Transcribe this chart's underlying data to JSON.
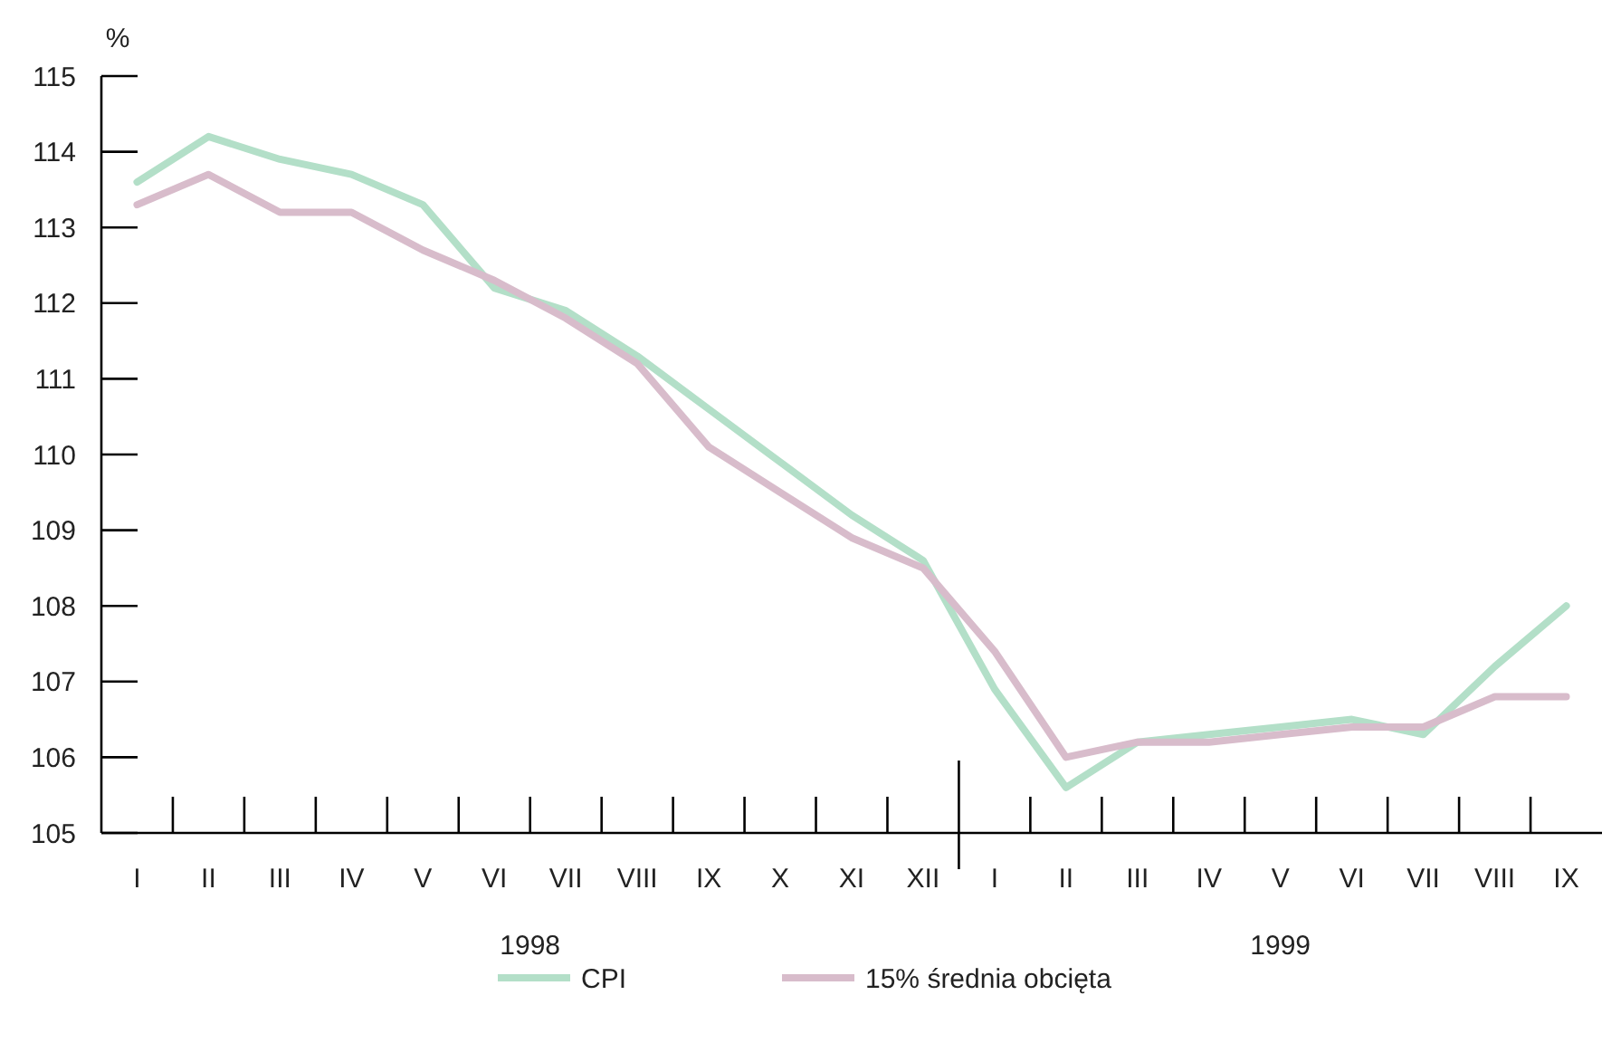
{
  "chart_data": {
    "type": "line",
    "ylabel": "%",
    "categories": [
      "I",
      "II",
      "III",
      "IV",
      "V",
      "VI",
      "VII",
      "VIII",
      "IX",
      "X",
      "XI",
      "XII",
      "I",
      "II",
      "III",
      "IV",
      "V",
      "VI",
      "VII",
      "VIII",
      "IX"
    ],
    "series": [
      {
        "name": "CPI",
        "color": "#b3dfc8",
        "values": [
          113.6,
          114.2,
          113.9,
          113.7,
          113.3,
          112.2,
          111.9,
          111.3,
          110.6,
          109.9,
          109.2,
          108.6,
          106.9,
          105.6,
          106.2,
          106.3,
          106.4,
          106.5,
          106.3,
          107.2,
          108.0
        ]
      },
      {
        "name": "15% średnia obcięta",
        "color": "#d8bccb",
        "values": [
          113.3,
          113.7,
          113.2,
          113.2,
          112.7,
          112.3,
          111.8,
          111.2,
          110.1,
          109.5,
          108.9,
          108.5,
          107.4,
          106.0,
          106.2,
          106.2,
          106.3,
          106.4,
          106.4,
          106.8,
          106.8
        ]
      }
    ],
    "ylim": [
      105,
      115
    ],
    "yticks": [
      105,
      106,
      107,
      108,
      109,
      110,
      111,
      112,
      113,
      114,
      115
    ],
    "annotations": [
      "1998",
      "1999"
    ],
    "legend": "bottom",
    "grid": false,
    "marker": "none",
    "line_style": "solid"
  }
}
